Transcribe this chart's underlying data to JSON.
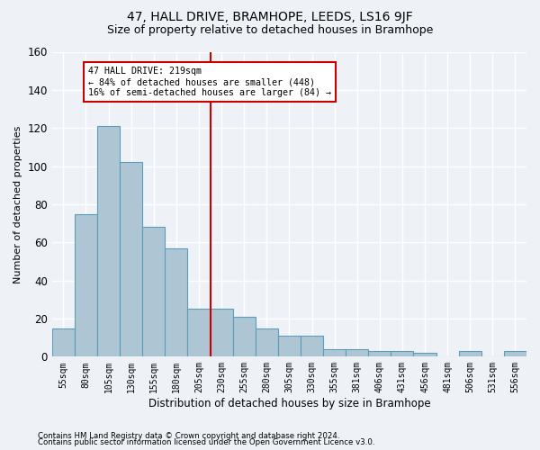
{
  "title": "47, HALL DRIVE, BRAMHOPE, LEEDS, LS16 9JF",
  "subtitle": "Size of property relative to detached houses in Bramhope",
  "xlabel": "Distribution of detached houses by size in Bramhope",
  "ylabel": "Number of detached properties",
  "bar_labels": [
    "55sqm",
    "80sqm",
    "105sqm",
    "130sqm",
    "155sqm",
    "180sqm",
    "205sqm",
    "230sqm",
    "255sqm",
    "280sqm",
    "305sqm",
    "330sqm",
    "355sqm",
    "381sqm",
    "406sqm",
    "431sqm",
    "456sqm",
    "481sqm",
    "506sqm",
    "531sqm",
    "556sqm"
  ],
  "bar_values": [
    15,
    75,
    121,
    102,
    68,
    57,
    25,
    25,
    21,
    15,
    11,
    11,
    4,
    4,
    3,
    3,
    2,
    0,
    3,
    0,
    3
  ],
  "bar_color": "#aec6d4",
  "bar_edge_color": "#5b9eba",
  "vline_color": "#cc0000",
  "annotation_title": "47 HALL DRIVE: 219sqm",
  "annotation_line1": "← 84% of detached houses are smaller (448)",
  "annotation_line2": "16% of semi-detached houses are larger (84) →",
  "annotation_box_color": "#ffffff",
  "annotation_box_edge": "#cc0000",
  "footer1": "Contains HM Land Registry data © Crown copyright and database right 2024.",
  "footer2": "Contains public sector information licensed under the Open Government Licence v3.0.",
  "ylim": [
    0,
    160
  ],
  "background_color": "#eef2f7",
  "plot_bg_color": "#eef2f7",
  "grid_color": "#ffffff",
  "title_fontsize": 10,
  "subtitle_fontsize": 9,
  "tick_fontsize": 7,
  "ylabel_fontsize": 8,
  "xlabel_fontsize": 8.5
}
